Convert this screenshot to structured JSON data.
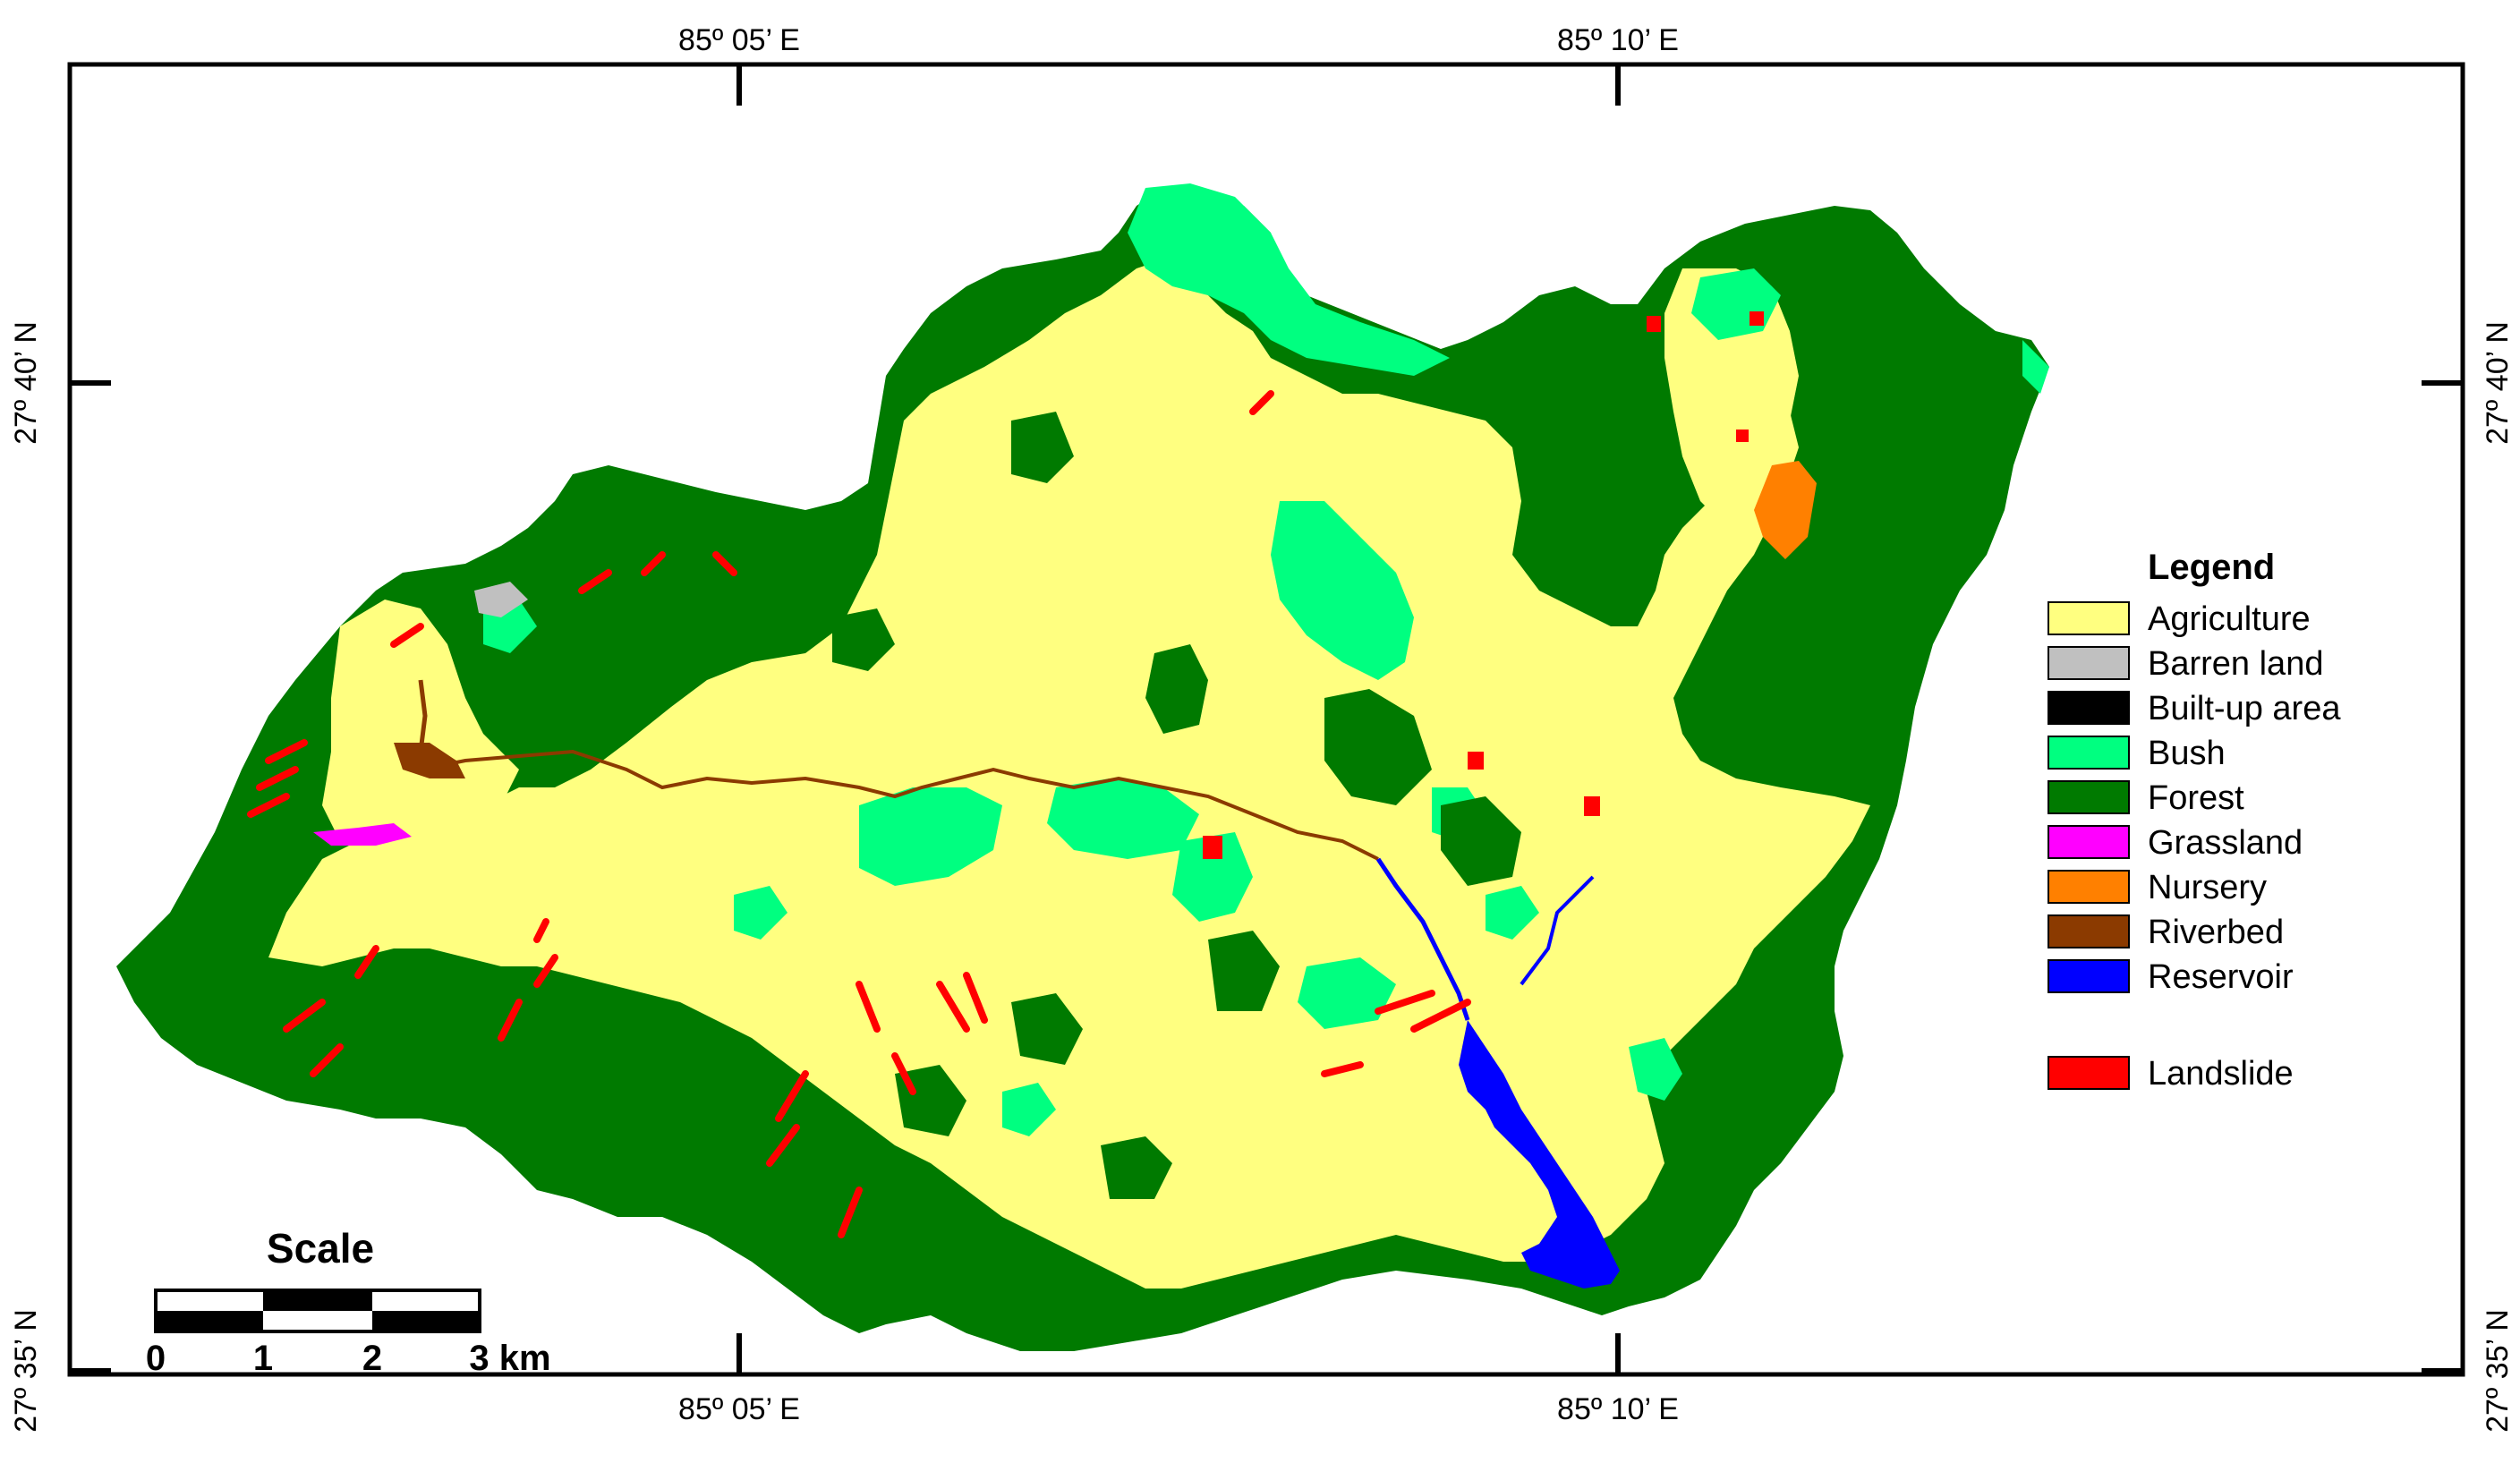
{
  "coordinates": {
    "top": [
      "85º 05’ E",
      "85º 10’ E"
    ],
    "bottom": [
      "85º 05’ E",
      "85º 10’ E"
    ],
    "left": [
      "27º 40’ N",
      "27º 35’ N"
    ],
    "right": [
      "27º 40’ N",
      "27º 35’ N"
    ]
  },
  "legend": {
    "title": "Legend",
    "items": [
      {
        "label": "Agriculture",
        "color": "#ffff80"
      },
      {
        "label": "Barren land",
        "color": "#c0c0c0"
      },
      {
        "label": "Built-up area",
        "color": "#000000"
      },
      {
        "label": "Bush",
        "color": "#00ff80"
      },
      {
        "label": "Forest",
        "color": "#007a00"
      },
      {
        "label": "Grassland",
        "color": "#ff00ff"
      },
      {
        "label": "Nursery",
        "color": "#ff8000"
      },
      {
        "label": "Riverbed",
        "color": "#8b3a00"
      },
      {
        "label": "Reservoir",
        "color": "#0000ff"
      },
      {
        "label": "Landslide",
        "color": "#ff0000"
      }
    ]
  },
  "scale": {
    "title": "Scale",
    "labels": [
      "0",
      "1",
      "2",
      "3 km"
    ]
  },
  "colors": {
    "agriculture": "#ffff80",
    "forest": "#007a00",
    "bush": "#00ff80",
    "reservoir": "#0000ff",
    "landslide": "#ff0000",
    "riverbed": "#8b3a00",
    "grassland": "#ff00ff",
    "nursery": "#ff8000",
    "barren": "#c0c0c0"
  }
}
